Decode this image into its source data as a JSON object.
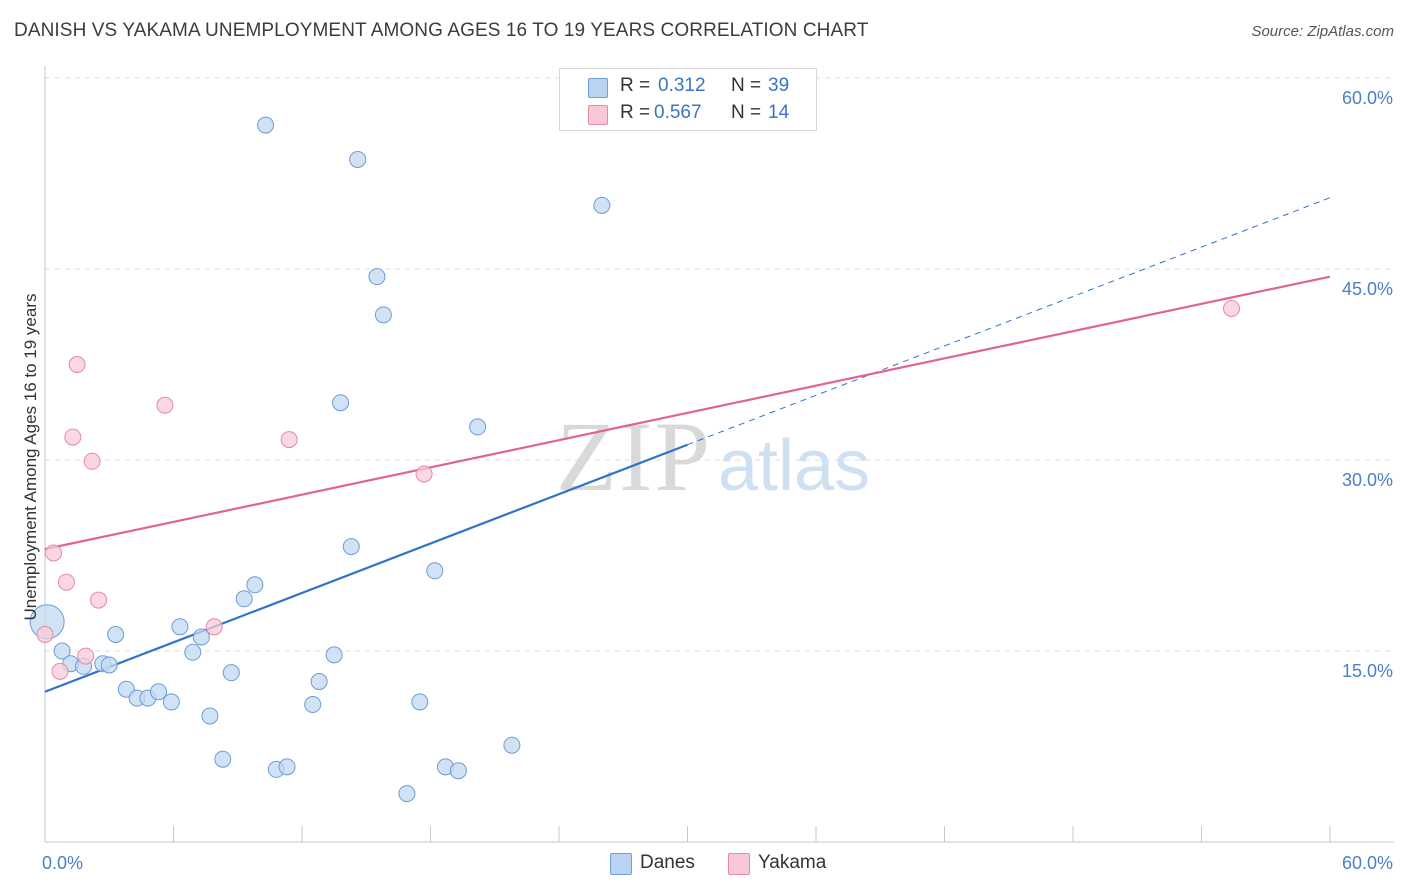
{
  "title": "DANISH VS YAKAMA UNEMPLOYMENT AMONG AGES 16 TO 19 YEARS CORRELATION CHART",
  "source": "Source: ZipAtlas.com",
  "watermark": {
    "zip": "ZIP",
    "atlas": "atlas"
  },
  "legend": {
    "r_label": "R =",
    "n_label": "N =",
    "rows": [
      {
        "r": "0.312",
        "n": "39",
        "swatch_fill": "#bcd4f3",
        "swatch_stroke": "#6f9edb"
      },
      {
        "r": "0.567",
        "n": "14",
        "swatch_fill": "#f9c8d6",
        "swatch_stroke": "#e48aa6"
      }
    ]
  },
  "bottom_legend": [
    {
      "label": "Danes",
      "fill": "#bcd4f3",
      "stroke": "#6f9edb"
    },
    {
      "label": "Yakama",
      "fill": "#f9c8d6",
      "stroke": "#e48aa6"
    }
  ],
  "colors": {
    "danes_fill": "#c3d8f2",
    "danes_stroke": "#6c9cd8",
    "danes_line": "#3272cc",
    "yakama_fill": "#f8cad8",
    "yakama_stroke": "#e58aa7",
    "yakama_line": "#e0658e",
    "grid": "#dcdcdc",
    "tick_text": "#4a7fc9"
  },
  "chart_data": {
    "type": "scatter",
    "title": "DANISH VS YAKAMA UNEMPLOYMENT AMONG AGES 16 TO 19 YEARS CORRELATION CHART",
    "xlabel": "",
    "ylabel": "Unemployment Among Ages 16 to 19 years",
    "xlim": [
      0,
      60
    ],
    "ylim": [
      0,
      60
    ],
    "x_tick_labels": [
      "0.0%",
      "60.0%"
    ],
    "y_ticks": [
      {
        "value": 15,
        "label": "15.0%"
      },
      {
        "value": 30,
        "label": "30.0%"
      },
      {
        "value": 45,
        "label": "45.0%"
      },
      {
        "value": 60,
        "label": "60.0%"
      }
    ],
    "grid": true,
    "legend_position": "top-center",
    "series": [
      {
        "name": "Danes",
        "r": 0.312,
        "n": 39,
        "trend": {
          "x0": 0,
          "y0": 11.8,
          "x1": 30,
          "y1": 31.2,
          "dash_to_x": 60,
          "dash_to_y": 50.6
        },
        "points": [
          {
            "x": 0.1,
            "y": 17.3,
            "size": "large"
          },
          {
            "x": 0.8,
            "y": 15.0
          },
          {
            "x": 1.2,
            "y": 14.0
          },
          {
            "x": 1.8,
            "y": 13.8
          },
          {
            "x": 2.7,
            "y": 14.0
          },
          {
            "x": 3.3,
            "y": 16.3
          },
          {
            "x": 3.8,
            "y": 12.0
          },
          {
            "x": 4.3,
            "y": 11.3
          },
          {
            "x": 4.8,
            "y": 11.3
          },
          {
            "x": 5.3,
            "y": 11.8
          },
          {
            "x": 5.9,
            "y": 11.0
          },
          {
            "x": 6.3,
            "y": 16.9
          },
          {
            "x": 6.9,
            "y": 14.9
          },
          {
            "x": 7.3,
            "y": 16.1
          },
          {
            "x": 7.7,
            "y": 9.9
          },
          {
            "x": 8.3,
            "y": 6.5
          },
          {
            "x": 8.7,
            "y": 13.3
          },
          {
            "x": 9.3,
            "y": 19.1
          },
          {
            "x": 9.8,
            "y": 20.2
          },
          {
            "x": 10.3,
            "y": 56.3
          },
          {
            "x": 10.8,
            "y": 5.7
          },
          {
            "x": 11.3,
            "y": 5.9
          },
          {
            "x": 12.5,
            "y": 10.8
          },
          {
            "x": 12.8,
            "y": 12.6
          },
          {
            "x": 13.5,
            "y": 14.7
          },
          {
            "x": 13.8,
            "y": 34.5
          },
          {
            "x": 14.3,
            "y": 23.2
          },
          {
            "x": 14.6,
            "y": 53.6
          },
          {
            "x": 15.5,
            "y": 44.4
          },
          {
            "x": 15.8,
            "y": 41.4
          },
          {
            "x": 16.9,
            "y": 3.8
          },
          {
            "x": 17.5,
            "y": 11.0
          },
          {
            "x": 18.2,
            "y": 21.3
          },
          {
            "x": 18.7,
            "y": 5.9
          },
          {
            "x": 19.3,
            "y": 5.6
          },
          {
            "x": 20.2,
            "y": 32.6
          },
          {
            "x": 21.8,
            "y": 7.6
          },
          {
            "x": 26.0,
            "y": 50.0
          },
          {
            "x": 3.0,
            "y": 13.9
          }
        ]
      },
      {
        "name": "Yakama",
        "r": 0.567,
        "n": 14,
        "trend": {
          "x0": 0,
          "y0": 23.0,
          "x1": 60,
          "y1": 44.4
        },
        "points": [
          {
            "x": 0.0,
            "y": 16.3
          },
          {
            "x": 0.4,
            "y": 22.7
          },
          {
            "x": 0.7,
            "y": 13.4
          },
          {
            "x": 1.0,
            "y": 20.4
          },
          {
            "x": 1.3,
            "y": 31.8
          },
          {
            "x": 1.5,
            "y": 37.5
          },
          {
            "x": 1.9,
            "y": 14.6
          },
          {
            "x": 2.2,
            "y": 29.9
          },
          {
            "x": 2.5,
            "y": 19.0
          },
          {
            "x": 5.6,
            "y": 34.3
          },
          {
            "x": 7.9,
            "y": 16.9
          },
          {
            "x": 11.4,
            "y": 31.6
          },
          {
            "x": 17.7,
            "y": 28.9
          },
          {
            "x": 55.4,
            "y": 41.9
          }
        ]
      }
    ]
  }
}
